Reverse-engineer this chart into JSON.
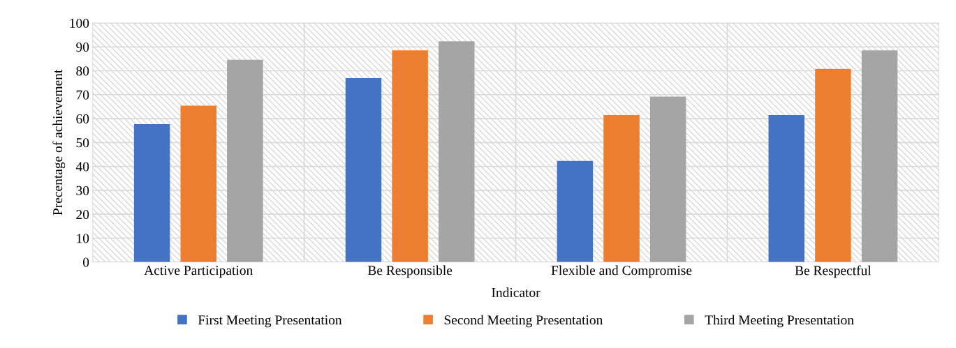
{
  "chart_data": {
    "type": "bar",
    "xlabel": "Indicator",
    "ylabel": "Precentage of achievement",
    "categories": [
      "Active Participation",
      "Be Responsible",
      "Flexible and Compromise",
      "Be Respectful"
    ],
    "series": [
      {
        "name": "First Meeting Presentation",
        "color": "#4472c4",
        "values": [
          57.7,
          76.9,
          42.3,
          61.5
        ]
      },
      {
        "name": "Second Meeting Presentation",
        "color": "#ed7d31",
        "values": [
          65.4,
          88.5,
          61.5,
          80.8
        ]
      },
      {
        "name": "Third Meeting Presentation",
        "color": "#a5a5a5",
        "values": [
          84.6,
          92.3,
          69.2,
          88.5
        ]
      }
    ],
    "ylim": [
      0,
      100
    ],
    "yticks": [
      0,
      10,
      20,
      30,
      40,
      50,
      60,
      70,
      80,
      90,
      100
    ],
    "grid": true,
    "legend": "bottom"
  }
}
